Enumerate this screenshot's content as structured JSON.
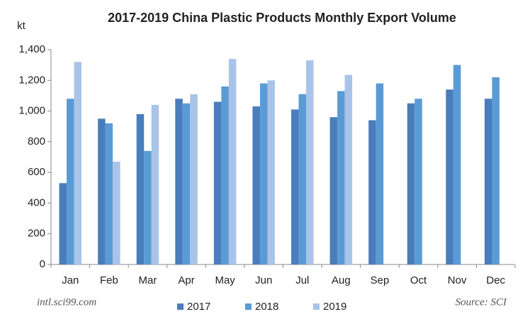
{
  "chart_data": {
    "type": "bar",
    "title": "2017-2019 China Plastic Products Monthly Export Volume",
    "y_label": "kt",
    "categories": [
      "Jan",
      "Feb",
      "Mar",
      "Apr",
      "May",
      "Jun",
      "Jul",
      "Aug",
      "Sep",
      "Oct",
      "Nov",
      "Dec"
    ],
    "series": [
      {
        "name": "2017",
        "color": "#4a7dbb",
        "values": [
          530,
          950,
          980,
          1080,
          1060,
          1030,
          1010,
          960,
          940,
          1050,
          1140,
          1080
        ]
      },
      {
        "name": "2018",
        "color": "#5b9bd5",
        "values": [
          1080,
          920,
          740,
          1050,
          1160,
          1180,
          1110,
          1130,
          1180,
          1080,
          1300,
          1220
        ]
      },
      {
        "name": "2019",
        "color": "#a9c4e8",
        "values": [
          1320,
          670,
          1040,
          1110,
          1340,
          1200,
          1330,
          1235,
          null,
          null,
          null,
          null
        ]
      }
    ],
    "ylim": [
      0,
      1400
    ],
    "yticks": [
      0,
      200,
      400,
      600,
      800,
      {
        "value": 1000,
        "label": "1,000"
      },
      {
        "value": 1200,
        "label": "1,200"
      },
      {
        "value": 1400,
        "label": "1,400"
      }
    ],
    "grid": false,
    "legend": "bottom",
    "footnote_left": "intl.sci99.com",
    "footnote_right": "Source: SCI"
  }
}
